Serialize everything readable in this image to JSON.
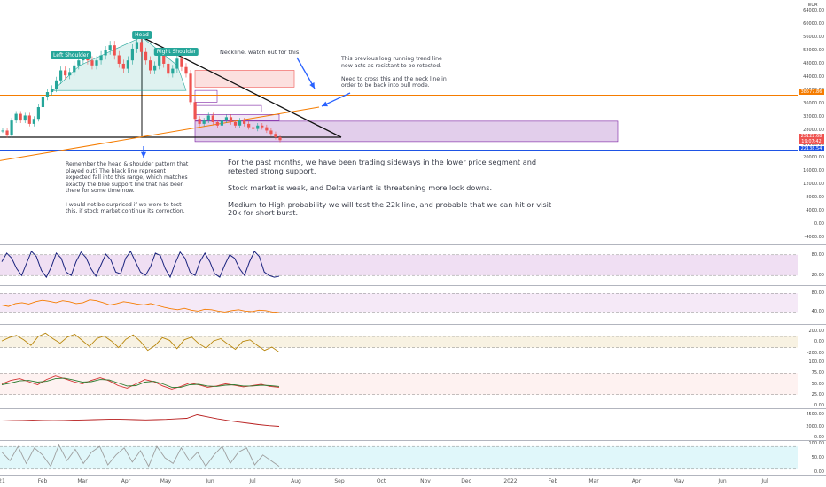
{
  "currency": "EUR",
  "colors": {
    "up": "#26a69a",
    "down": "#ef5350",
    "orange": "#f57c00",
    "blue": "#1e53e5",
    "purple": "#7b1fa2",
    "navy": "#1a237e",
    "teal": "#26a69a"
  },
  "annotations": {
    "left_shoulder": "Left Shoulder",
    "head": "Head",
    "right_shoulder": "Right Shoulder",
    "neckline_note": "Neckline, watch out for this.",
    "trendline_note": "This previous long running trend line\nnow acts as resistant to be retested.\n\nNeed to cross this and the neck line in\norder to be back into bull mode.",
    "hs_note": "Remember the head & shoulder pattern that\nplayed out? The black line represent\nexpected fall into this range, which matches\nexactly the blue support line that has been\nthere for some time now.\n\nI would not be surprised if we were to test\nthis, if stock market continue its correction.",
    "main_note": "For the past months, we have been trading sideways in the lower price segment and\nretested strong support.\n\nStock market is weak, and Delta variant is threatening more lock downs.\n\nMedium to High probability we will test the 22k line, and probable that we can hit or visit\n20k for short burst."
  },
  "price_tags": {
    "orange": "38577.86",
    "red1": "25122.68",
    "red2": "19:07:42",
    "blue": "22138.54"
  },
  "x_axis_labels": [
    "21",
    "Feb",
    "Mar",
    "Apr",
    "May",
    "Jun",
    "Jul",
    "Aug",
    "Sep",
    "Oct",
    "Nov",
    "Dec",
    "2022",
    "Feb",
    "Mar",
    "Apr",
    "May",
    "Jun",
    "Jul"
  ],
  "chart_data": [
    {
      "type": "line",
      "panel": "price",
      "series_kind": "candlestick",
      "y_ticks": [
        64000,
        60000,
        56000,
        52000,
        48000,
        44000,
        40000,
        36000,
        32000,
        28000,
        24000,
        20000,
        16000,
        12000,
        8000,
        4000,
        0,
        -4000
      ],
      "ylim": [
        -5000,
        66000
      ],
      "x_ticks": [
        "21",
        "Feb",
        "Mar",
        "Apr",
        "May",
        "Jun",
        "Jul",
        "Aug",
        "Sep",
        "Oct",
        "Nov",
        "Dec",
        "2022",
        "Feb",
        "Mar",
        "Apr",
        "May",
        "Jun",
        "Jul"
      ],
      "close_path": [
        28000,
        26500,
        31000,
        33000,
        31000,
        32500,
        30000,
        31500,
        35000,
        38000,
        39500,
        40500,
        43000,
        46000,
        44500,
        45500,
        47500,
        49000,
        50500,
        49000,
        47500,
        49000,
        50500,
        52000,
        53500,
        50500,
        48000,
        46500,
        49000,
        52500,
        54500,
        51500,
        49000,
        46000,
        47500,
        50500,
        48000,
        45000,
        46500,
        49500,
        47000,
        45000,
        36500,
        31500,
        30000,
        31000,
        32500,
        30500,
        29500,
        31000,
        32000,
        30500,
        29500,
        31000,
        30000,
        29000,
        28500,
        29500,
        29000,
        28000,
        27000,
        26000,
        25122.68
      ],
      "levels": {
        "orange_support": 38577.86,
        "blue_support": 22138.54,
        "neckline": 27000
      }
    },
    {
      "type": "line",
      "panel": "stoch_rsi",
      "y_ticks": [
        80,
        20
      ],
      "series": [
        {
          "values": [
            60,
            85,
            70,
            40,
            20,
            55,
            90,
            75,
            35,
            15,
            45,
            85,
            70,
            30,
            20,
            60,
            88,
            72,
            40,
            18,
            50,
            82,
            65,
            30,
            25,
            70,
            90,
            60,
            30,
            20,
            45,
            85,
            78,
            40,
            15,
            55,
            88,
            70,
            30,
            20,
            60,
            85,
            60,
            25,
            15,
            50,
            80,
            70,
            40,
            20,
            60,
            90,
            75,
            30,
            20,
            15,
            18
          ]
        }
      ]
    },
    {
      "type": "line",
      "panel": "rsi",
      "y_ticks": [
        80,
        40
      ],
      "series": [
        {
          "values": [
            55,
            52,
            58,
            60,
            57,
            62,
            65,
            63,
            60,
            64,
            62,
            58,
            60,
            66,
            64,
            60,
            55,
            58,
            62,
            60,
            57,
            55,
            58,
            54,
            50,
            47,
            45,
            48,
            44,
            42,
            46,
            45,
            42,
            40,
            43,
            45,
            42,
            41,
            44,
            43,
            40,
            39
          ]
        }
      ]
    },
    {
      "type": "line",
      "panel": "cci",
      "y_ticks": [
        200,
        0,
        -200
      ],
      "series": [
        {
          "values": [
            20,
            80,
            120,
            40,
            -60,
            100,
            160,
            60,
            -20,
            90,
            140,
            30,
            -80,
            60,
            110,
            20,
            -100,
            50,
            130,
            10,
            -150,
            -60,
            80,
            30,
            -120,
            40,
            90,
            -30,
            -110,
            20,
            60,
            -40,
            -130,
            10,
            40,
            -60,
            -150,
            -90,
            -180
          ]
        }
      ]
    },
    {
      "type": "line",
      "panel": "oscillator",
      "y_ticks": [
        100,
        75,
        50,
        25,
        0
      ],
      "series": [
        {
          "values": [
            50,
            58,
            62,
            55,
            48,
            60,
            68,
            62,
            55,
            50,
            58,
            64,
            57,
            46,
            40,
            50,
            60,
            55,
            45,
            38,
            44,
            52,
            48,
            42,
            45,
            50,
            47,
            43,
            46,
            49,
            44,
            42
          ]
        },
        {
          "values": [
            48,
            52,
            57,
            58,
            54,
            56,
            62,
            63,
            59,
            54,
            55,
            60,
            59,
            52,
            45,
            46,
            54,
            56,
            50,
            42,
            42,
            48,
            49,
            45,
            44,
            47,
            48,
            45,
            45,
            47,
            46,
            44
          ]
        }
      ]
    },
    {
      "type": "line",
      "panel": "volume_trend",
      "y_ticks": [
        4500,
        2000,
        0
      ],
      "series": [
        {
          "values": [
            3200,
            3250,
            3300,
            3350,
            3300,
            3250,
            3300,
            3350,
            3400,
            3450,
            3500,
            3550,
            3500,
            3450,
            3400,
            3450,
            3500,
            3600,
            3700,
            4400,
            4000,
            3600,
            3300,
            3000,
            2750,
            2500,
            2300,
            2150
          ]
        }
      ]
    },
    {
      "type": "line",
      "panel": "bottom_osc",
      "y_ticks": [
        100,
        50,
        0
      ],
      "series": [
        {
          "values": [
            70,
            40,
            90,
            30,
            85,
            60,
            20,
            95,
            40,
            80,
            30,
            70,
            90,
            25,
            60,
            85,
            35,
            75,
            20,
            90,
            50,
            30,
            85,
            40,
            70,
            20,
            60,
            90,
            30,
            70,
            85,
            25,
            60,
            40,
            20
          ]
        }
      ]
    }
  ]
}
